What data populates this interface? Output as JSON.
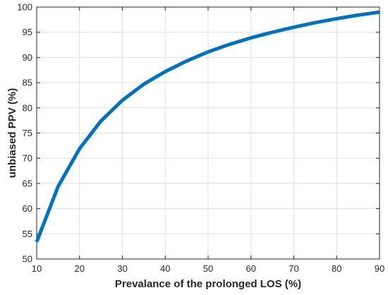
{
  "chart_data": {
    "type": "line",
    "title": "",
    "xlabel": "Prevalance of the prolonged LOS (%)",
    "ylabel": "unbiased PPV (%)",
    "xlim": [
      10,
      90
    ],
    "ylim": [
      50,
      100
    ],
    "xticks": [
      10,
      20,
      30,
      40,
      50,
      60,
      70,
      80,
      90
    ],
    "yticks": [
      50,
      55,
      60,
      65,
      70,
      75,
      80,
      85,
      90,
      95,
      100
    ],
    "grid": true,
    "series": [
      {
        "color": "#0072BD",
        "x": [
          10,
          15,
          20,
          25,
          30,
          35,
          40,
          45,
          50,
          55,
          60,
          65,
          70,
          75,
          80,
          85,
          90
        ],
        "y": [
          53.4,
          64.4,
          71.9,
          77.4,
          81.5,
          84.7,
          87.2,
          89.3,
          91.1,
          92.6,
          93.9,
          95.0,
          96.0,
          96.9,
          97.7,
          98.4,
          99.0
        ]
      }
    ]
  }
}
